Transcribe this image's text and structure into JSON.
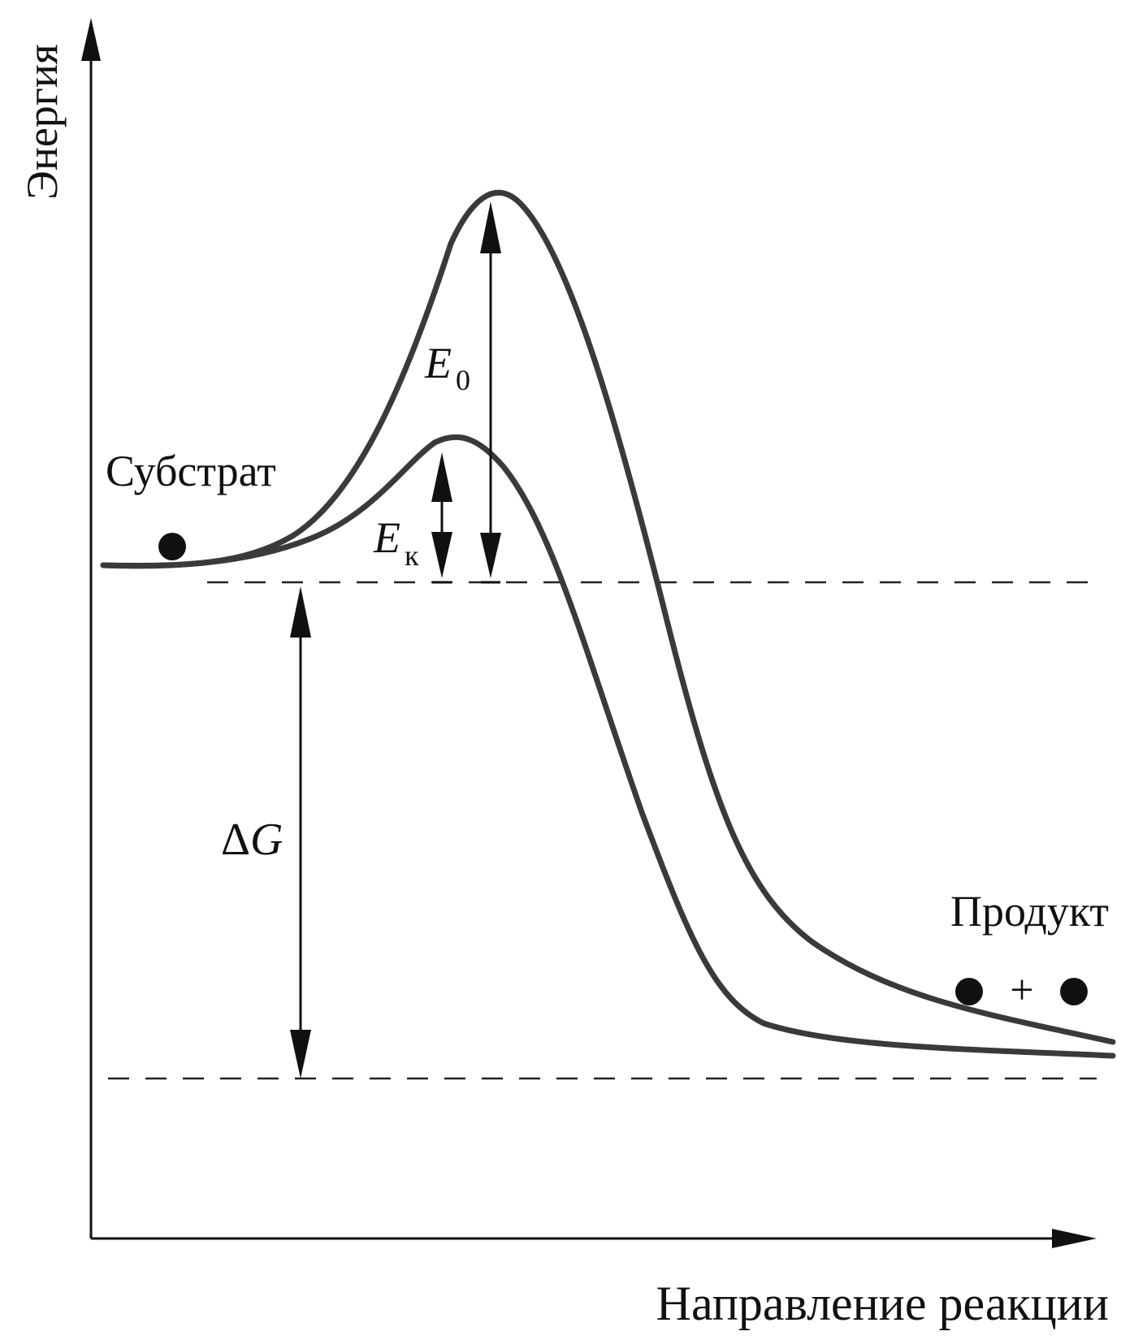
{
  "diagram": {
    "axes": {
      "y_label": "Энергия",
      "x_label": "Направление реакции"
    },
    "labels": {
      "substrate": "Субстрат",
      "product": "Продукт",
      "product_plus": "+",
      "e0_main": "E",
      "e0_sub": "0",
      "ek_main": "E",
      "ek_sub": "к",
      "dg_delta": "Δ",
      "dg_main": "G"
    },
    "curves": [
      {
        "id": "uncatalyzed",
        "peak_label": "E0"
      },
      {
        "id": "catalyzed",
        "peak_label": "Eк"
      }
    ],
    "colors": {
      "curve": "#3a3a3a",
      "ink": "#111111",
      "background": "#ffffff"
    }
  }
}
